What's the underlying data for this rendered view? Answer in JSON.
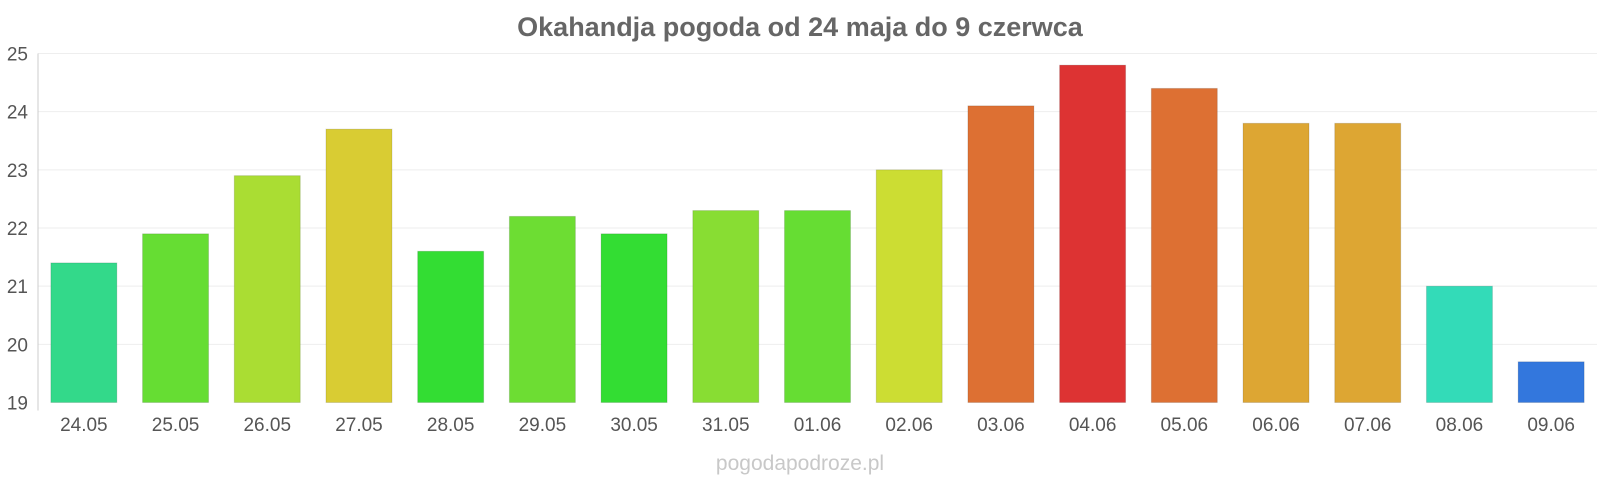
{
  "chart_data": {
    "type": "bar",
    "title": "Okahandja pogoda od 24 maja do 9 czerwca",
    "xlabel": "",
    "ylabel": "",
    "ylim": [
      19,
      25
    ],
    "yticks": [
      19,
      20,
      21,
      22,
      23,
      24,
      25
    ],
    "grid": true,
    "legend": "none",
    "categories": [
      "24.05",
      "25.05",
      "26.05",
      "27.05",
      "28.05",
      "29.05",
      "30.05",
      "31.05",
      "01.06",
      "02.06",
      "03.06",
      "04.06",
      "05.06",
      "06.06",
      "07.06",
      "08.06",
      "09.06"
    ],
    "values": [
      21.4,
      21.9,
      22.9,
      23.7,
      21.6,
      22.2,
      21.9,
      22.3,
      22.3,
      23.0,
      24.1,
      24.8,
      24.4,
      23.8,
      23.8,
      21.0,
      19.7
    ],
    "colors": [
      "#33d98a",
      "#66dd33",
      "#aadd33",
      "#d9cc33",
      "#33dd33",
      "#6ddd33",
      "#33dd33",
      "#88dd33",
      "#66dd33",
      "#ccdd33",
      "#dd7033",
      "#dd3333",
      "#dd7033",
      "#dda633",
      "#dda633",
      "#33dbb8",
      "#3377dd"
    ]
  },
  "watermark": "pogodapodroze.pl"
}
